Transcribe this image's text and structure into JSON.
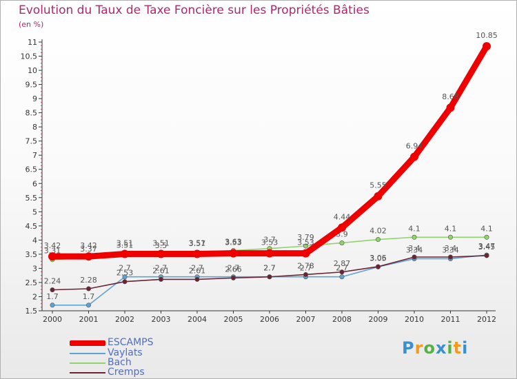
{
  "title": "Evolution du Taux de Taxe Foncière sur les Propriétés Bâties",
  "unit": "(en %)",
  "logo": [
    "P",
    "r",
    "o",
    "x",
    "i",
    "t",
    "i"
  ],
  "chart_data": {
    "type": "line",
    "title": "Evolution du Taux de Taxe Foncière sur les Propriétés Bâties",
    "ylabel": "(en %)",
    "ylim": [
      1.5,
      11
    ],
    "yticks": [
      "1.5",
      "2",
      "2.5",
      "3",
      "3.5",
      "4",
      "4.5",
      "5",
      "5.5",
      "6",
      "6.5",
      "7",
      "7.5",
      "8",
      "8.5",
      "9",
      "9.5",
      "10",
      "10.5",
      "11"
    ],
    "categories": [
      "2000",
      "2001",
      "2002",
      "2003",
      "2004",
      "2005",
      "2006",
      "2007",
      "2008",
      "2009",
      "2010",
      "2011",
      "2012"
    ],
    "series": [
      {
        "name": "Bach",
        "color": "#8fd36a",
        "values": [
          3.31,
          3.37,
          3.51,
          3.5,
          3.57,
          3.63,
          3.7,
          3.79,
          3.9,
          4.02,
          4.1,
          4.1,
          4.1
        ],
        "labels": [
          "3.31",
          "3.37",
          "3.51",
          "3.5",
          "3.57",
          "3.63",
          "3.7",
          "3.79",
          "3.9",
          "4.02",
          "4.1",
          "4.1",
          "4.1"
        ]
      },
      {
        "name": "Vaylats",
        "color": "#5ea2d3",
        "values": [
          1.7,
          1.7,
          2.7,
          2.7,
          2.7,
          2.7,
          2.7,
          2.7,
          2.7,
          3.05,
          3.34,
          3.34,
          3.47
        ],
        "labels": [
          "1.7",
          "1.7",
          "2.7",
          "2.7",
          "2.7",
          "2.7",
          "2.7",
          "2.7",
          "2.7",
          "3.05",
          "3.34",
          "3.34",
          "3.47"
        ]
      },
      {
        "name": "Cremps",
        "color": "#6b2233",
        "values": [
          2.24,
          2.28,
          2.53,
          2.61,
          2.61,
          2.66,
          2.7,
          2.78,
          2.87,
          3.06,
          3.4,
          3.4,
          3.45
        ],
        "labels": [
          "2.24",
          "2.28",
          "2.53",
          "2.61",
          "2.61",
          "2.66",
          "2.7",
          "2.78",
          "2.87",
          "3.06",
          "3.4",
          "3.4",
          "3.45"
        ]
      },
      {
        "name": "ESCAMPS",
        "color": "#ef0000",
        "values": [
          3.42,
          3.42,
          3.51,
          3.51,
          3.51,
          3.53,
          3.53,
          3.53,
          4.44,
          5.55,
          6.94,
          8.68,
          10.85
        ],
        "labels": [
          "3.42",
          "3.42",
          "3.51",
          "3.51",
          "3.51",
          "3.53",
          "3.53",
          "3.53",
          "4.44",
          "5.55",
          "6.94",
          "8.68",
          "10.85"
        ]
      }
    ],
    "legend": [
      "ESCAMPS",
      "Vaylats",
      "Bach",
      "Cremps"
    ],
    "legend_position": "bottom-left"
  }
}
